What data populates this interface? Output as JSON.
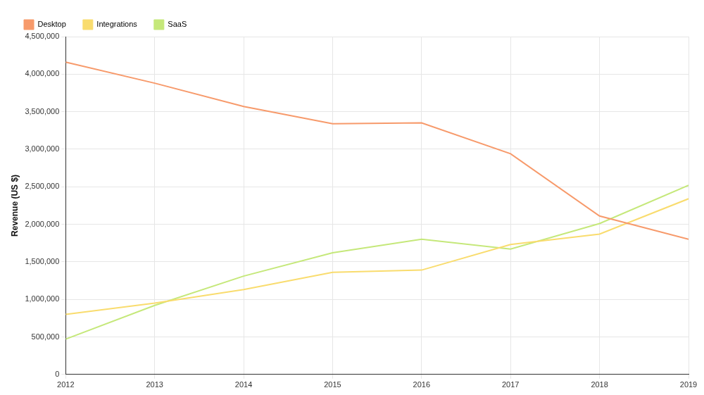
{
  "chart_data": {
    "type": "line",
    "y_label": "Revenue (US $)",
    "categories": [
      "2012",
      "2013",
      "2014",
      "2015",
      "2016",
      "2017",
      "2018",
      "2019"
    ],
    "series": [
      {
        "name": "Desktop",
        "color": "#f79a6b",
        "values": [
          4160000,
          3880000,
          3570000,
          3340000,
          3350000,
          2940000,
          2110000,
          1800000
        ]
      },
      {
        "name": "Integrations",
        "color": "#f9dc6e",
        "values": [
          800000,
          950000,
          1130000,
          1360000,
          1390000,
          1730000,
          1870000,
          2340000
        ]
      },
      {
        "name": "SaaS",
        "color": "#c5e87a",
        "values": [
          470000,
          920000,
          1310000,
          1620000,
          1800000,
          1670000,
          2010000,
          2520000
        ]
      }
    ],
    "ylim": [
      0,
      4500000
    ],
    "yticks": [
      0,
      {
        "value": 500000,
        "label": "500,000"
      },
      {
        "value": 1000000,
        "label": "1,000,000"
      },
      {
        "value": 1500000,
        "label": "1,500,000"
      },
      {
        "value": 2000000,
        "label": "2,000,000"
      },
      {
        "value": 2500000,
        "label": "2,500,000"
      },
      {
        "value": 3000000,
        "label": "3,000,000"
      },
      {
        "value": 3500000,
        "label": "3,500,000"
      },
      {
        "value": 4000000,
        "label": "4,000,000"
      },
      {
        "value": 4500000,
        "label": "4,500,000"
      }
    ],
    "grid": true,
    "legend": "top-left",
    "marker": "none",
    "line_style": "solid"
  }
}
